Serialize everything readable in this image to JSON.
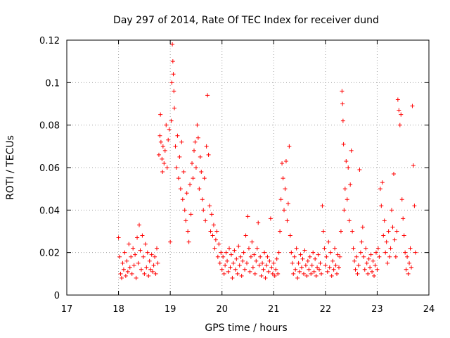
{
  "chart_data": {
    "type": "scatter",
    "title": "Day 297 of 2014, Rate Of TEC Index for receiver dund",
    "xlabel": "GPS time / hours",
    "ylabel": "ROTI / TECUs",
    "xlim": [
      17,
      24
    ],
    "ylim": [
      0,
      0.12
    ],
    "xticks": [
      17,
      18,
      19,
      20,
      21,
      22,
      23,
      24
    ],
    "yticks": [
      0,
      0.02,
      0.04,
      0.06,
      0.08,
      0.1,
      0.12
    ],
    "xtick_labels": [
      "17",
      "18",
      "19",
      "20",
      "21",
      "22",
      "23",
      "24"
    ],
    "ytick_labels": [
      "0",
      "0.02",
      "0.04",
      "0.06",
      "0.08",
      "0.1",
      "0.12"
    ],
    "grid": true,
    "marker": "+",
    "color": "#ff0000",
    "series": [
      {
        "name": "ROTI",
        "points": [
          [
            18.0,
            0.027
          ],
          [
            18.02,
            0.018
          ],
          [
            18.04,
            0.01
          ],
          [
            18.06,
            0.008
          ],
          [
            18.08,
            0.015
          ],
          [
            18.1,
            0.012
          ],
          [
            18.12,
            0.02
          ],
          [
            18.14,
            0.009
          ],
          [
            18.16,
            0.016
          ],
          [
            18.18,
            0.011
          ],
          [
            18.2,
            0.024
          ],
          [
            18.22,
            0.013
          ],
          [
            18.24,
            0.018
          ],
          [
            18.26,
            0.01
          ],
          [
            18.28,
            0.022
          ],
          [
            18.3,
            0.014
          ],
          [
            18.32,
            0.019
          ],
          [
            18.34,
            0.008
          ],
          [
            18.36,
            0.027
          ],
          [
            18.38,
            0.015
          ],
          [
            18.4,
            0.033
          ],
          [
            18.42,
            0.021
          ],
          [
            18.44,
            0.012
          ],
          [
            18.46,
            0.028
          ],
          [
            18.48,
            0.018
          ],
          [
            18.5,
            0.01
          ],
          [
            18.52,
            0.024
          ],
          [
            18.54,
            0.013
          ],
          [
            18.56,
            0.02
          ],
          [
            18.58,
            0.009
          ],
          [
            18.6,
            0.016
          ],
          [
            18.62,
            0.012
          ],
          [
            18.64,
            0.019
          ],
          [
            18.66,
            0.011
          ],
          [
            18.68,
            0.014
          ],
          [
            18.7,
            0.018
          ],
          [
            18.72,
            0.01
          ],
          [
            18.74,
            0.022
          ],
          [
            18.76,
            0.015
          ],
          [
            18.78,
            0.066
          ],
          [
            18.8,
            0.075
          ],
          [
            18.81,
            0.085
          ],
          [
            18.82,
            0.072
          ],
          [
            18.84,
            0.064
          ],
          [
            18.85,
            0.058
          ],
          [
            18.86,
            0.07
          ],
          [
            18.88,
            0.062
          ],
          [
            18.9,
            0.068
          ],
          [
            18.92,
            0.08
          ],
          [
            18.94,
            0.06
          ],
          [
            18.96,
            0.073
          ],
          [
            18.98,
            0.078
          ],
          [
            19.0,
            0.025
          ],
          [
            19.02,
            0.082
          ],
          [
            19.03,
            0.1
          ],
          [
            19.04,
            0.118
          ],
          [
            19.05,
            0.11
          ],
          [
            19.06,
            0.104
          ],
          [
            19.07,
            0.096
          ],
          [
            19.08,
            0.088
          ],
          [
            19.1,
            0.07
          ],
          [
            19.12,
            0.06
          ],
          [
            19.14,
            0.075
          ],
          [
            19.16,
            0.055
          ],
          [
            19.18,
            0.065
          ],
          [
            19.2,
            0.05
          ],
          [
            19.22,
            0.072
          ],
          [
            19.24,
            0.045
          ],
          [
            19.26,
            0.058
          ],
          [
            19.28,
            0.04
          ],
          [
            19.3,
            0.035
          ],
          [
            19.32,
            0.048
          ],
          [
            19.34,
            0.03
          ],
          [
            19.36,
            0.025
          ],
          [
            19.38,
            0.052
          ],
          [
            19.4,
            0.038
          ],
          [
            19.42,
            0.062
          ],
          [
            19.44,
            0.055
          ],
          [
            19.46,
            0.068
          ],
          [
            19.48,
            0.072
          ],
          [
            19.5,
            0.06
          ],
          [
            19.52,
            0.08
          ],
          [
            19.54,
            0.074
          ],
          [
            19.56,
            0.05
          ],
          [
            19.58,
            0.065
          ],
          [
            19.6,
            0.058
          ],
          [
            19.62,
            0.045
          ],
          [
            19.64,
            0.04
          ],
          [
            19.66,
            0.055
          ],
          [
            19.68,
            0.035
          ],
          [
            19.7,
            0.07
          ],
          [
            19.72,
            0.094
          ],
          [
            19.74,
            0.066
          ],
          [
            19.76,
            0.042
          ],
          [
            19.78,
            0.03
          ],
          [
            19.8,
            0.038
          ],
          [
            19.82,
            0.028
          ],
          [
            19.84,
            0.033
          ],
          [
            19.86,
            0.022
          ],
          [
            19.88,
            0.026
          ],
          [
            19.9,
            0.03
          ],
          [
            19.92,
            0.018
          ],
          [
            19.94,
            0.024
          ],
          [
            19.96,
            0.015
          ],
          [
            19.98,
            0.02
          ],
          [
            20.0,
            0.012
          ],
          [
            20.02,
            0.018
          ],
          [
            20.04,
            0.01
          ],
          [
            20.06,
            0.014
          ],
          [
            20.08,
            0.02
          ],
          [
            20.1,
            0.016
          ],
          [
            20.12,
            0.011
          ],
          [
            20.14,
            0.022
          ],
          [
            20.16,
            0.013
          ],
          [
            20.18,
            0.019
          ],
          [
            20.2,
            0.008
          ],
          [
            20.22,
            0.015
          ],
          [
            20.24,
            0.021
          ],
          [
            20.26,
            0.012
          ],
          [
            20.28,
            0.017
          ],
          [
            20.3,
            0.01
          ],
          [
            20.32,
            0.023
          ],
          [
            20.34,
            0.014
          ],
          [
            20.36,
            0.018
          ],
          [
            20.38,
            0.009
          ],
          [
            20.4,
            0.016
          ],
          [
            20.42,
            0.02
          ],
          [
            20.44,
            0.012
          ],
          [
            20.46,
            0.028
          ],
          [
            20.48,
            0.015
          ],
          [
            20.5,
            0.037
          ],
          [
            20.52,
            0.022
          ],
          [
            20.54,
            0.011
          ],
          [
            20.56,
            0.018
          ],
          [
            20.58,
            0.025
          ],
          [
            20.6,
            0.013
          ],
          [
            20.62,
            0.019
          ],
          [
            20.64,
            0.01
          ],
          [
            20.66,
            0.016
          ],
          [
            20.68,
            0.022
          ],
          [
            20.7,
            0.034
          ],
          [
            20.72,
            0.014
          ],
          [
            20.74,
            0.018
          ],
          [
            20.76,
            0.009
          ],
          [
            20.78,
            0.015
          ],
          [
            20.8,
            0.012
          ],
          [
            20.82,
            0.02
          ],
          [
            20.84,
            0.008
          ],
          [
            20.86,
            0.014
          ],
          [
            20.88,
            0.018
          ],
          [
            20.9,
            0.011
          ],
          [
            20.92,
            0.016
          ],
          [
            20.94,
            0.036
          ],
          [
            20.96,
            0.013
          ],
          [
            20.98,
            0.01
          ],
          [
            21.0,
            0.015
          ],
          [
            21.02,
            0.009
          ],
          [
            21.04,
            0.012
          ],
          [
            21.06,
            0.017
          ],
          [
            21.08,
            0.01
          ],
          [
            21.1,
            0.02
          ],
          [
            21.12,
            0.03
          ],
          [
            21.14,
            0.045
          ],
          [
            21.16,
            0.062
          ],
          [
            21.18,
            0.055
          ],
          [
            21.2,
            0.04
          ],
          [
            21.22,
            0.05
          ],
          [
            21.24,
            0.063
          ],
          [
            21.26,
            0.035
          ],
          [
            21.28,
            0.043
          ],
          [
            21.3,
            0.07
          ],
          [
            21.32,
            0.028
          ],
          [
            21.34,
            0.02
          ],
          [
            21.36,
            0.015
          ],
          [
            21.38,
            0.01
          ],
          [
            21.4,
            0.018
          ],
          [
            21.42,
            0.012
          ],
          [
            21.44,
            0.022
          ],
          [
            21.46,
            0.008
          ],
          [
            21.48,
            0.015
          ],
          [
            21.5,
            0.011
          ],
          [
            21.52,
            0.019
          ],
          [
            21.54,
            0.013
          ],
          [
            21.56,
            0.017
          ],
          [
            21.58,
            0.01
          ],
          [
            21.6,
            0.021
          ],
          [
            21.62,
            0.014
          ],
          [
            21.64,
            0.009
          ],
          [
            21.66,
            0.016
          ],
          [
            21.68,
            0.012
          ],
          [
            21.7,
            0.018
          ],
          [
            21.72,
            0.01
          ],
          [
            21.74,
            0.014
          ],
          [
            21.76,
            0.02
          ],
          [
            21.78,
            0.011
          ],
          [
            21.8,
            0.017
          ],
          [
            21.82,
            0.009
          ],
          [
            21.84,
            0.013
          ],
          [
            21.86,
            0.019
          ],
          [
            21.88,
            0.012
          ],
          [
            21.9,
            0.015
          ],
          [
            21.92,
            0.01
          ],
          [
            21.94,
            0.042
          ],
          [
            21.96,
            0.03
          ],
          [
            21.98,
            0.022
          ],
          [
            22.0,
            0.014
          ],
          [
            22.02,
            0.018
          ],
          [
            22.04,
            0.011
          ],
          [
            22.06,
            0.025
          ],
          [
            22.08,
            0.013
          ],
          [
            22.1,
            0.02
          ],
          [
            22.12,
            0.009
          ],
          [
            22.14,
            0.016
          ],
          [
            22.16,
            0.012
          ],
          [
            22.18,
            0.022
          ],
          [
            22.2,
            0.014
          ],
          [
            22.22,
            0.01
          ],
          [
            22.24,
            0.019
          ],
          [
            22.26,
            0.013
          ],
          [
            22.28,
            0.018
          ],
          [
            22.3,
            0.03
          ],
          [
            22.32,
            0.096
          ],
          [
            22.33,
            0.09
          ],
          [
            22.34,
            0.082
          ],
          [
            22.35,
            0.071
          ],
          [
            22.36,
            0.04
          ],
          [
            22.38,
            0.05
          ],
          [
            22.4,
            0.063
          ],
          [
            22.42,
            0.045
          ],
          [
            22.44,
            0.06
          ],
          [
            22.46,
            0.035
          ],
          [
            22.48,
            0.052
          ],
          [
            22.5,
            0.068
          ],
          [
            22.52,
            0.03
          ],
          [
            22.54,
            0.022
          ],
          [
            22.56,
            0.016
          ],
          [
            22.58,
            0.012
          ],
          [
            22.6,
            0.018
          ],
          [
            22.62,
            0.01
          ],
          [
            22.64,
            0.014
          ],
          [
            22.66,
            0.059
          ],
          [
            22.68,
            0.02
          ],
          [
            22.7,
            0.025
          ],
          [
            22.72,
            0.032
          ],
          [
            22.74,
            0.018
          ],
          [
            22.76,
            0.012
          ],
          [
            22.78,
            0.022
          ],
          [
            22.8,
            0.015
          ],
          [
            22.82,
            0.01
          ],
          [
            22.84,
            0.017
          ],
          [
            22.86,
            0.013
          ],
          [
            22.88,
            0.019
          ],
          [
            22.9,
            0.011
          ],
          [
            22.92,
            0.016
          ],
          [
            22.94,
            0.009
          ],
          [
            22.96,
            0.014
          ],
          [
            22.98,
            0.02
          ],
          [
            23.0,
            0.012
          ],
          [
            23.02,
            0.022
          ],
          [
            23.04,
            0.018
          ],
          [
            23.06,
            0.05
          ],
          [
            23.08,
            0.042
          ],
          [
            23.1,
            0.053
          ],
          [
            23.12,
            0.028
          ],
          [
            23.14,
            0.035
          ],
          [
            23.16,
            0.02
          ],
          [
            23.18,
            0.025
          ],
          [
            23.2,
            0.015
          ],
          [
            23.22,
            0.03
          ],
          [
            23.24,
            0.018
          ],
          [
            23.26,
            0.022
          ],
          [
            23.28,
            0.04
          ],
          [
            23.3,
            0.032
          ],
          [
            23.32,
            0.057
          ],
          [
            23.34,
            0.026
          ],
          [
            23.36,
            0.018
          ],
          [
            23.38,
            0.03
          ],
          [
            23.4,
            0.092
          ],
          [
            23.42,
            0.087
          ],
          [
            23.44,
            0.08
          ],
          [
            23.46,
            0.085
          ],
          [
            23.48,
            0.045
          ],
          [
            23.5,
            0.036
          ],
          [
            23.52,
            0.028
          ],
          [
            23.54,
            0.02
          ],
          [
            23.56,
            0.012
          ],
          [
            23.58,
            0.018
          ],
          [
            23.6,
            0.01
          ],
          [
            23.62,
            0.015
          ],
          [
            23.64,
            0.022
          ],
          [
            23.66,
            0.013
          ],
          [
            23.68,
            0.089
          ],
          [
            23.7,
            0.061
          ],
          [
            23.72,
            0.042
          ],
          [
            23.74,
            0.02
          ]
        ]
      }
    ]
  }
}
